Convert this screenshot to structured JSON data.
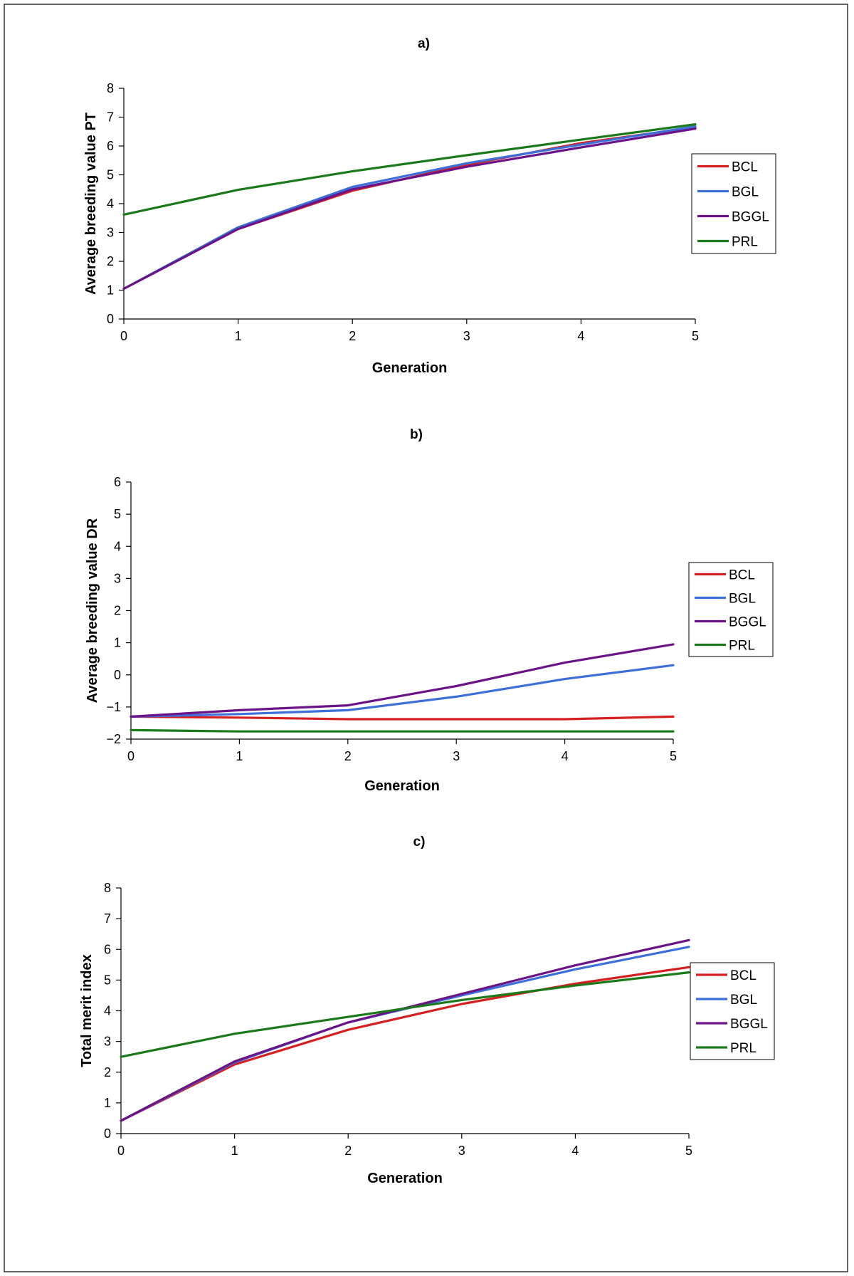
{
  "chart_data": [
    {
      "type": "line",
      "title": "a)",
      "xlabel": "Generation",
      "ylabel": "Average breeding value PT",
      "x": [
        0,
        1,
        2,
        3,
        4,
        5
      ],
      "xticks": [
        0,
        1,
        2,
        3,
        4,
        5
      ],
      "ylim": [
        0,
        8
      ],
      "yticks": [
        0,
        1,
        2,
        3,
        4,
        5,
        6,
        7,
        8
      ],
      "legend_position": "right",
      "series": [
        {
          "name": "BCL",
          "color": "#d42020",
          "values": [
            1.05,
            3.12,
            4.45,
            5.35,
            6.1,
            6.65
          ]
        },
        {
          "name": "BGL",
          "color": "#3d6fd9",
          "values": [
            1.05,
            3.18,
            4.58,
            5.4,
            6.05,
            6.68
          ]
        },
        {
          "name": "BGGL",
          "color": "#6b1488",
          "values": [
            1.05,
            3.12,
            4.5,
            5.28,
            5.95,
            6.6
          ]
        },
        {
          "name": "PRL",
          "color": "#1a7a1a",
          "values": [
            3.62,
            4.48,
            5.12,
            5.68,
            6.22,
            6.75
          ]
        }
      ]
    },
    {
      "type": "line",
      "title": "b)",
      "xlabel": "Generation",
      "ylabel": "Average breeding value DR",
      "x": [
        0,
        1,
        2,
        3,
        4,
        5
      ],
      "xticks": [
        0,
        1,
        2,
        3,
        4,
        5
      ],
      "ylim": [
        -2,
        6
      ],
      "yticks": [
        -2,
        -1,
        0,
        1,
        2,
        3,
        4,
        5,
        6
      ],
      "legend_position": "right",
      "series": [
        {
          "name": "BCL",
          "color": "#d42020",
          "values": [
            -1.3,
            -1.33,
            -1.38,
            -1.38,
            -1.38,
            -1.3
          ]
        },
        {
          "name": "BGL",
          "color": "#3d6fd9",
          "values": [
            -1.3,
            -1.22,
            -1.1,
            -0.68,
            -0.13,
            0.3
          ]
        },
        {
          "name": "BGGL",
          "color": "#6b1488",
          "values": [
            -1.3,
            -1.1,
            -0.95,
            -0.35,
            0.38,
            0.95
          ]
        },
        {
          "name": "PRL",
          "color": "#1a7a1a",
          "values": [
            -1.72,
            -1.76,
            -1.76,
            -1.76,
            -1.76,
            -1.76
          ]
        }
      ]
    },
    {
      "type": "line",
      "title": "c)",
      "xlabel": "Generation",
      "ylabel": "Total merit index",
      "x": [
        0,
        1,
        2,
        3,
        4,
        5
      ],
      "xticks": [
        0,
        1,
        2,
        3,
        4,
        5
      ],
      "ylim": [
        0,
        8
      ],
      "yticks": [
        0,
        1,
        2,
        3,
        4,
        5,
        6,
        7,
        8
      ],
      "legend_position": "right",
      "series": [
        {
          "name": "BCL",
          "color": "#d42020",
          "values": [
            0.42,
            2.25,
            3.38,
            4.22,
            4.88,
            5.42
          ]
        },
        {
          "name": "BGL",
          "color": "#3d6fd9",
          "values": [
            0.42,
            2.32,
            3.62,
            4.5,
            5.35,
            6.08
          ]
        },
        {
          "name": "BGGL",
          "color": "#6b1488",
          "values": [
            0.42,
            2.35,
            3.62,
            4.55,
            5.48,
            6.3
          ]
        },
        {
          "name": "PRL",
          "color": "#1a7a1a",
          "values": [
            2.5,
            3.25,
            3.8,
            4.35,
            4.82,
            5.25
          ]
        }
      ]
    }
  ]
}
